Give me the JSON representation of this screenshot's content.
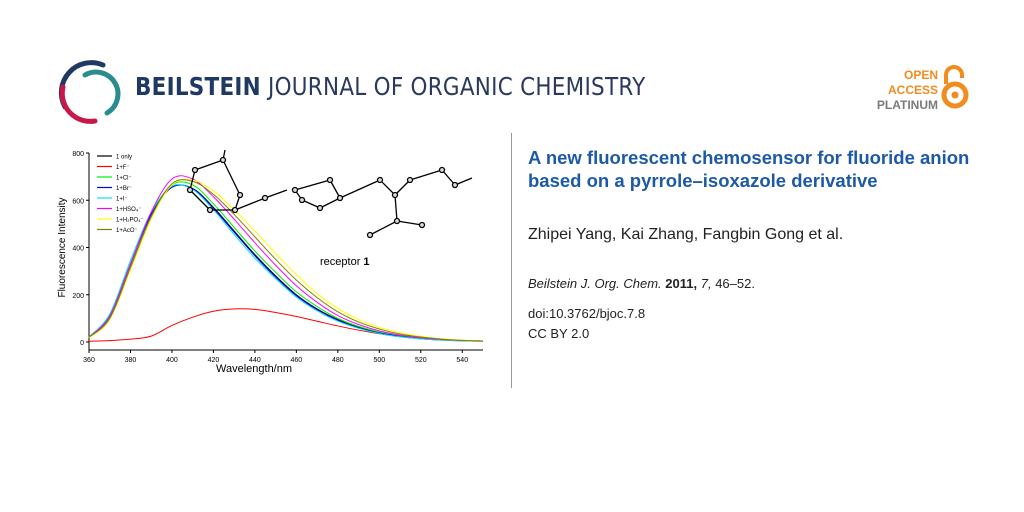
{
  "journal": {
    "name_bold": "BEILSTEIN",
    "name_rest": "JOURNAL OF ORGANIC CHEMISTRY"
  },
  "open_access": {
    "line1": "OPEN",
    "line2": "ACCESS",
    "line3": "PLATINUM",
    "color": "#f28c1e"
  },
  "article": {
    "title": "A new fluorescent chemosensor for fluoride anion based on a pyrrole–isoxazole derivative",
    "authors": "Zhipei Yang, Kai Zhang, Fangbin Gong et al.",
    "citation": {
      "journal": "Beilstein J. Org. Chem.",
      "year": "2011,",
      "volume": "7,",
      "pages": "46–52."
    },
    "doi": "doi:10.3762/bjoc.7.8",
    "license": "CC BY 2.0"
  },
  "figure": {
    "caption_text": "receptor ",
    "caption_bold": "1"
  },
  "chart_data": {
    "type": "line",
    "xlabel": "Wavelength/nm",
    "ylabel": "Fluorescence Intensity",
    "xlim": [
      360,
      550
    ],
    "ylim": [
      0,
      800
    ],
    "xticks": [
      360,
      380,
      400,
      420,
      440,
      460,
      480,
      500,
      520,
      540
    ],
    "yticks": [
      0,
      200,
      400,
      600,
      800
    ],
    "legend": "top-left",
    "x": [
      360,
      370,
      380,
      390,
      400,
      410,
      420,
      430,
      440,
      450,
      460,
      470,
      480,
      490,
      500,
      510,
      520,
      530,
      540,
      550
    ],
    "series": [
      {
        "name": "1 only",
        "color": "#000000",
        "values": [
          20,
          110,
          330,
          540,
          655,
          650,
          570,
          470,
          370,
          280,
          200,
          140,
          95,
          62,
          40,
          25,
          15,
          10,
          6,
          4
        ]
      },
      {
        "name": "1+F⁻",
        "color": "#ff0000",
        "values": [
          3,
          6,
          12,
          25,
          70,
          105,
          130,
          140,
          138,
          125,
          108,
          88,
          68,
          50,
          35,
          22,
          14,
          8,
          5,
          3
        ]
      },
      {
        "name": "1+Cl⁻",
        "color": "#00ee00",
        "values": [
          20,
          105,
          325,
          540,
          665,
          665,
          585,
          485,
          385,
          295,
          212,
          150,
          100,
          66,
          42,
          26,
          16,
          10,
          6,
          4
        ]
      },
      {
        "name": "1+Br⁻",
        "color": "#0000ff",
        "values": [
          20,
          110,
          330,
          540,
          655,
          648,
          565,
          465,
          365,
          275,
          196,
          137,
          92,
          60,
          38,
          24,
          14,
          9,
          6,
          4
        ]
      },
      {
        "name": "1+I⁻",
        "color": "#00e5ee",
        "values": [
          22,
          118,
          345,
          550,
          660,
          645,
          560,
          455,
          355,
          268,
          190,
          132,
          88,
          58,
          36,
          22,
          13,
          8,
          5,
          3
        ]
      },
      {
        "name": "1+HSO₄⁻",
        "color": "#ff00ff",
        "values": [
          20,
          110,
          330,
          550,
          690,
          690,
          615,
          520,
          420,
          325,
          238,
          168,
          112,
          74,
          47,
          29,
          18,
          11,
          7,
          4
        ]
      },
      {
        "name": "1+H₂PO₄⁻",
        "color": "#ffff00",
        "values": [
          18,
          95,
          305,
          520,
          665,
          685,
          640,
          560,
          470,
          375,
          285,
          205,
          142,
          95,
          62,
          39,
          24,
          14,
          8,
          5
        ]
      },
      {
        "name": "1+AcO⁻",
        "color": "#808000",
        "values": [
          20,
          100,
          315,
          530,
          670,
          680,
          625,
          540,
          445,
          350,
          262,
          188,
          128,
          85,
          55,
          34,
          21,
          12,
          7,
          4
        ]
      }
    ]
  }
}
